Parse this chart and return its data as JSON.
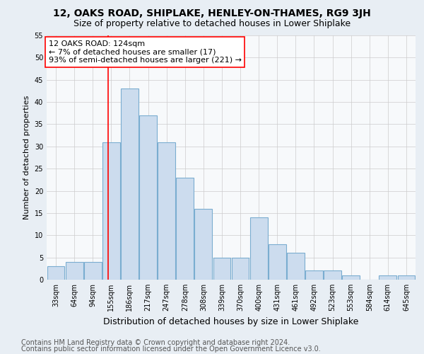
{
  "title": "12, OAKS ROAD, SHIPLAKE, HENLEY-ON-THAMES, RG9 3JH",
  "subtitle": "Size of property relative to detached houses in Lower Shiplake",
  "xlabel": "Distribution of detached houses by size in Lower Shiplake",
  "ylabel": "Number of detached properties",
  "footnote1": "Contains HM Land Registry data © Crown copyright and database right 2024.",
  "footnote2": "Contains public sector information licensed under the Open Government Licence v3.0.",
  "categories": [
    "33sqm",
    "64sqm",
    "94sqm",
    "155sqm",
    "186sqm",
    "217sqm",
    "247sqm",
    "278sqm",
    "308sqm",
    "339sqm",
    "370sqm",
    "400sqm",
    "431sqm",
    "461sqm",
    "492sqm",
    "523sqm",
    "553sqm",
    "584sqm",
    "614sqm",
    "645sqm"
  ],
  "values": [
    3,
    4,
    4,
    31,
    43,
    37,
    31,
    23,
    16,
    5,
    5,
    14,
    8,
    6,
    2,
    2,
    1,
    0,
    1,
    1
  ],
  "bar_color": "#ccdcee",
  "bar_edge_color": "#7aadd0",
  "annotation_line1": "12 OAKS ROAD: 124sqm",
  "annotation_line2": "← 7% of detached houses are smaller (17)",
  "annotation_line3": "93% of semi-detached houses are larger (221) →",
  "property_line_x": 2.85,
  "ylim": [
    0,
    55
  ],
  "yticks": [
    0,
    5,
    10,
    15,
    20,
    25,
    30,
    35,
    40,
    45,
    50,
    55
  ],
  "background_color": "#e8eef4",
  "plot_background_color": "#f7f9fb",
  "grid_color": "#cccccc",
  "title_fontsize": 10,
  "subtitle_fontsize": 9,
  "xlabel_fontsize": 9,
  "ylabel_fontsize": 8,
  "annot_fontsize": 8,
  "tick_fontsize": 7,
  "footnote_fontsize": 7
}
